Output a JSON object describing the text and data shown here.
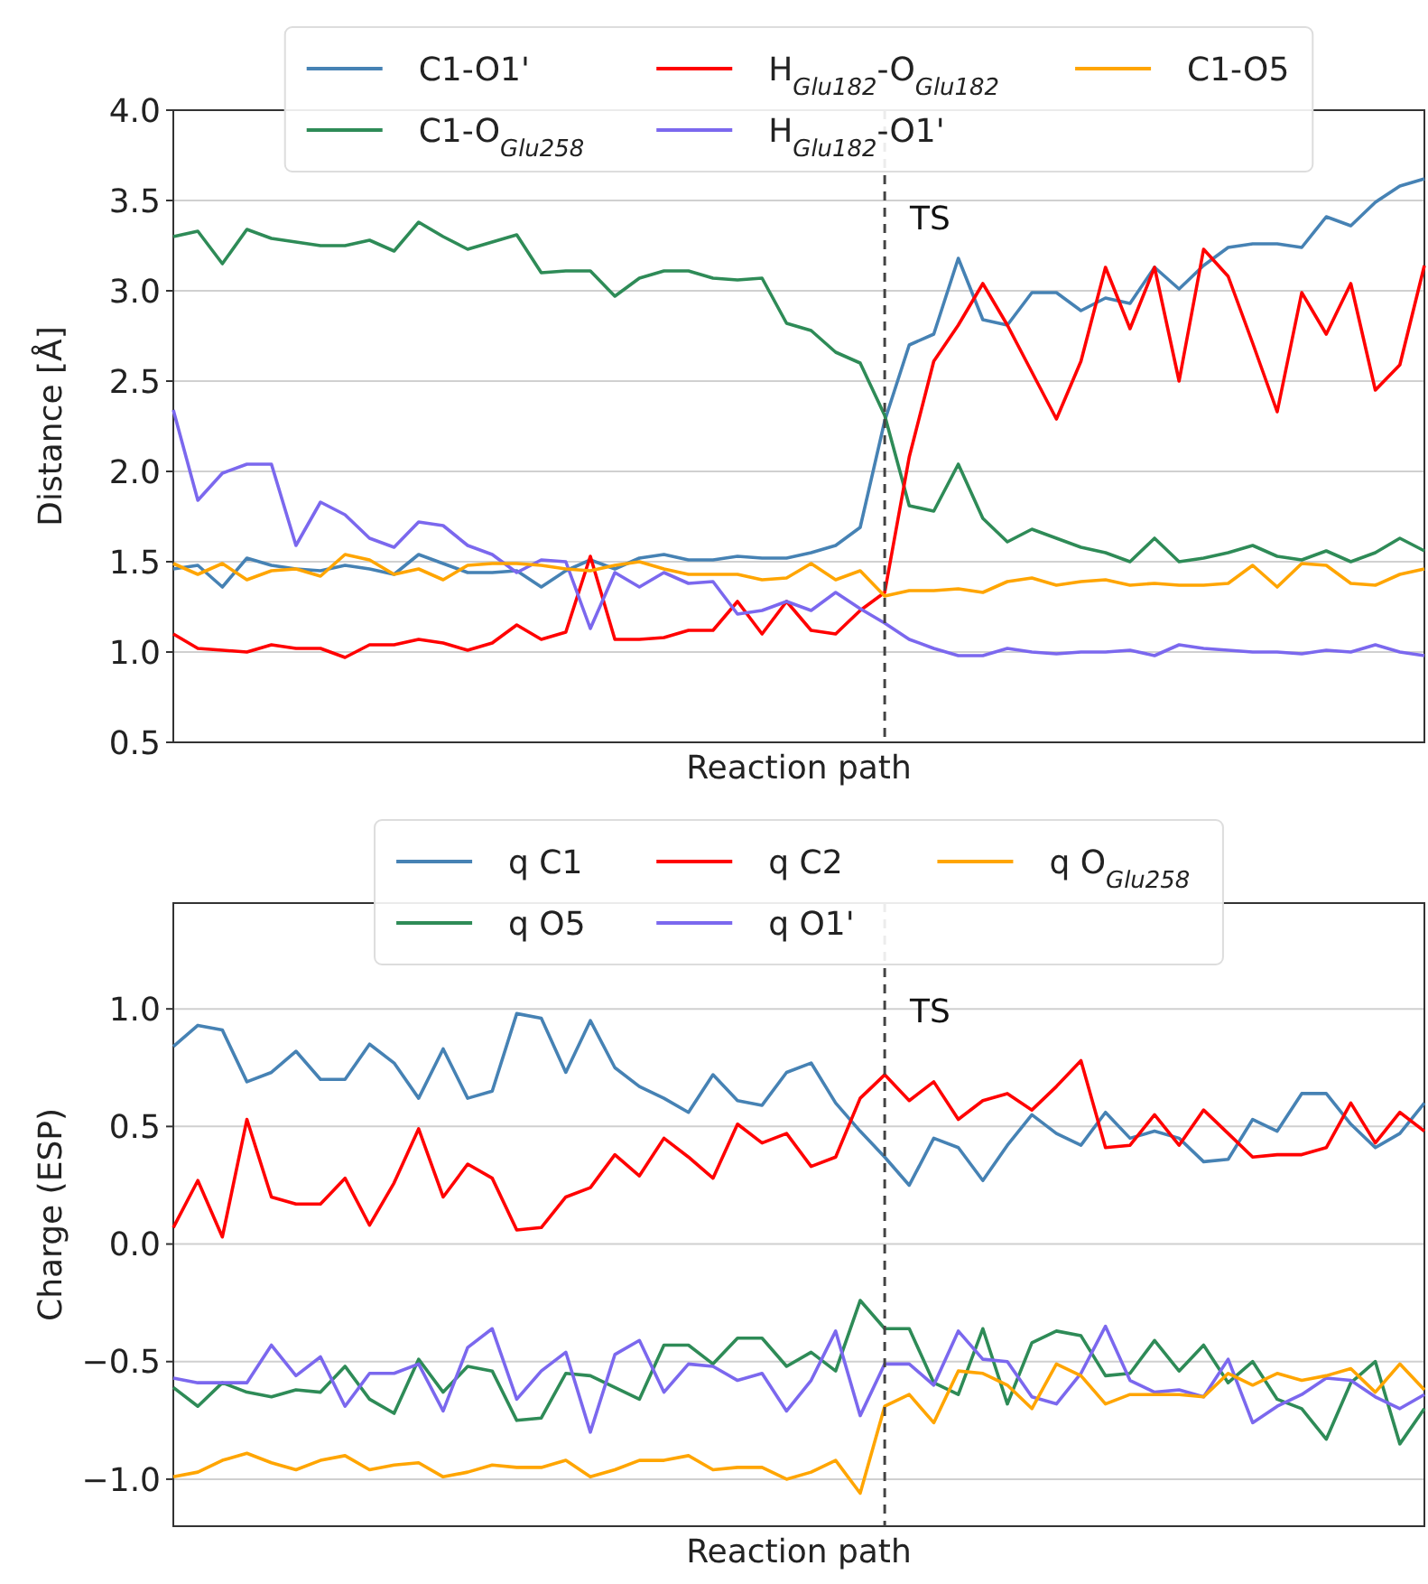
{
  "chart_data": [
    {
      "type": "line",
      "xlabel": "Reaction path",
      "ylabel": "Distance [Å]",
      "categories": [
        null,
        null,
        null,
        null,
        null,
        null,
        null,
        null,
        null,
        null,
        null,
        null,
        null,
        null,
        null,
        null,
        null,
        null,
        null,
        null,
        null,
        null,
        null,
        null,
        null,
        null,
        null,
        null,
        null,
        null,
        null,
        null,
        null,
        null,
        null,
        null,
        null,
        null,
        null,
        null,
        null,
        null,
        null,
        null,
        null,
        null,
        null,
        null,
        null,
        null,
        null,
        null
      ],
      "ylim": [
        0.5,
        4.0
      ],
      "yticks": [
        {
          "value": 0.5,
          "label": "0.5"
        },
        {
          "value": 1,
          "label": "1.0"
        },
        {
          "value": 1.5,
          "label": "1.5"
        },
        {
          "value": 2,
          "label": "2.0"
        },
        {
          "value": 2.5,
          "label": "2.5"
        },
        {
          "value": 3,
          "label": "3.0"
        },
        {
          "value": 3.5,
          "label": "3.5"
        },
        {
          "value": 4,
          "label": "4.0"
        }
      ],
      "tick_labels": "y",
      "grid": "y",
      "legend": "top",
      "marker": "none",
      "line_style": "solid",
      "annotations": [
        "TS"
      ],
      "series": [
        {
          "name": "C1-O1'",
          "color": "#4682b4",
          "values": [
            1.46,
            1.48,
            1.36,
            1.52,
            1.48,
            1.46,
            1.45,
            1.48,
            1.46,
            1.43,
            1.54,
            1.49,
            1.44,
            1.44,
            1.45,
            1.36,
            1.45,
            1.51,
            1.46,
            1.52,
            1.54,
            1.51,
            1.51,
            1.53,
            1.52,
            1.52,
            1.55,
            1.59,
            1.69,
            2.28,
            2.7,
            2.76,
            3.18,
            2.84,
            2.81,
            2.99,
            2.99,
            2.89,
            2.96,
            2.93,
            3.13,
            3.01,
            3.14,
            3.24,
            3.26,
            3.26,
            3.24,
            3.41,
            3.36,
            3.49,
            3.58,
            3.62
          ]
        },
        {
          "name": "C1-O$_{Glu258}$",
          "color": "#2e8b57",
          "values": [
            3.3,
            3.33,
            3.15,
            3.34,
            3.29,
            3.27,
            3.25,
            3.25,
            3.28,
            3.22,
            3.38,
            3.3,
            3.23,
            3.27,
            3.31,
            3.1,
            3.11,
            3.11,
            2.97,
            3.07,
            3.11,
            3.11,
            3.07,
            3.06,
            3.07,
            2.82,
            2.78,
            2.66,
            2.6,
            2.31,
            1.81,
            1.78,
            2.04,
            1.74,
            1.61,
            1.68,
            1.63,
            1.58,
            1.55,
            1.5,
            1.63,
            1.5,
            1.52,
            1.55,
            1.59,
            1.53,
            1.51,
            1.56,
            1.5,
            1.55,
            1.63,
            1.56
          ]
        },
        {
          "name": "H$_{Glu182}$-O$_{Glu182}$",
          "color": "#ff0000",
          "values": [
            1.1,
            1.02,
            1.01,
            1.0,
            1.04,
            1.02,
            1.02,
            0.97,
            1.04,
            1.04,
            1.07,
            1.05,
            1.01,
            1.05,
            1.15,
            1.07,
            1.11,
            1.53,
            1.07,
            1.07,
            1.08,
            1.12,
            1.12,
            1.28,
            1.1,
            1.28,
            1.12,
            1.1,
            1.23,
            1.33,
            2.08,
            2.61,
            2.81,
            3.04,
            2.81,
            2.55,
            2.29,
            2.61,
            3.13,
            2.79,
            3.13,
            2.5,
            3.23,
            3.08,
            2.71,
            2.33,
            2.99,
            2.76,
            3.04,
            2.45,
            2.59,
            3.14
          ]
        },
        {
          "name": "H$_{Glu182}$-O1'",
          "color": "#7b68ee",
          "values": [
            2.34,
            1.84,
            1.99,
            2.04,
            2.04,
            1.59,
            1.83,
            1.76,
            1.63,
            1.58,
            1.72,
            1.7,
            1.59,
            1.54,
            1.44,
            1.51,
            1.5,
            1.13,
            1.44,
            1.36,
            1.44,
            1.38,
            1.39,
            1.21,
            1.23,
            1.28,
            1.23,
            1.33,
            1.24,
            1.16,
            1.07,
            1.02,
            0.98,
            0.98,
            1.02,
            1.0,
            0.99,
            1.0,
            1.0,
            1.01,
            0.98,
            1.04,
            1.02,
            1.01,
            1.0,
            1.0,
            0.99,
            1.01,
            1.0,
            1.04,
            1.0,
            0.98
          ]
        },
        {
          "name": "C1-O5",
          "color": "#ffa500",
          "values": [
            1.49,
            1.43,
            1.49,
            1.4,
            1.45,
            1.46,
            1.42,
            1.54,
            1.51,
            1.43,
            1.46,
            1.4,
            1.48,
            1.49,
            1.49,
            1.48,
            1.46,
            1.45,
            1.48,
            1.5,
            1.46,
            1.43,
            1.43,
            1.43,
            1.4,
            1.41,
            1.49,
            1.4,
            1.45,
            1.31,
            1.34,
            1.34,
            1.35,
            1.33,
            1.39,
            1.41,
            1.37,
            1.39,
            1.4,
            1.37,
            1.38,
            1.37,
            1.37,
            1.38,
            1.48,
            1.36,
            1.49,
            1.48,
            1.38,
            1.37,
            1.43,
            1.46
          ]
        }
      ]
    },
    {
      "type": "line",
      "xlabel": "Reaction path",
      "ylabel": "Charge (ESP)",
      "categories": [
        null,
        null,
        null,
        null,
        null,
        null,
        null,
        null,
        null,
        null,
        null,
        null,
        null,
        null,
        null,
        null,
        null,
        null,
        null,
        null,
        null,
        null,
        null,
        null,
        null,
        null,
        null,
        null,
        null,
        null,
        null,
        null,
        null,
        null,
        null,
        null,
        null,
        null,
        null,
        null,
        null,
        null,
        null,
        null,
        null,
        null,
        null,
        null,
        null,
        null,
        null,
        null
      ],
      "ylim": [
        -1.2,
        1.45
      ],
      "yticks": [
        {
          "value": -1,
          "label": "−1.0"
        },
        {
          "value": -0.5,
          "label": "−0.5"
        },
        {
          "value": 0,
          "label": "0.0"
        },
        {
          "value": 0.5,
          "label": "0.5"
        },
        {
          "value": 1,
          "label": "1.0"
        }
      ],
      "tick_labels": "y",
      "grid": "y",
      "legend": "top",
      "marker": "none",
      "line_style": "solid",
      "annotations": [
        "TS"
      ],
      "series": [
        {
          "name": "q C1",
          "color": "#4682b4",
          "values": [
            0.84,
            0.93,
            0.91,
            0.69,
            0.73,
            0.82,
            0.7,
            0.7,
            0.85,
            0.77,
            0.62,
            0.83,
            0.62,
            0.65,
            0.98,
            0.96,
            0.73,
            0.95,
            0.75,
            0.67,
            0.62,
            0.56,
            0.72,
            0.61,
            0.59,
            0.73,
            0.77,
            0.6,
            0.48,
            0.37,
            0.25,
            0.45,
            0.41,
            0.27,
            0.42,
            0.55,
            0.47,
            0.42,
            0.56,
            0.45,
            0.48,
            0.45,
            0.35,
            0.36,
            0.53,
            0.48,
            0.64,
            0.64,
            0.51,
            0.41,
            0.47,
            0.6
          ]
        },
        {
          "name": "q O5",
          "color": "#2e8b57",
          "values": [
            -0.61,
            -0.69,
            -0.59,
            -0.63,
            -0.65,
            -0.62,
            -0.63,
            -0.52,
            -0.66,
            -0.72,
            -0.49,
            -0.63,
            -0.52,
            -0.54,
            -0.75,
            -0.74,
            -0.55,
            -0.56,
            -0.61,
            -0.66,
            -0.43,
            -0.43,
            -0.51,
            -0.4,
            -0.4,
            -0.52,
            -0.46,
            -0.54,
            -0.24,
            -0.36,
            -0.36,
            -0.59,
            -0.64,
            -0.36,
            -0.68,
            -0.42,
            -0.37,
            -0.39,
            -0.56,
            -0.55,
            -0.41,
            -0.54,
            -0.43,
            -0.59,
            -0.5,
            -0.66,
            -0.7,
            -0.83,
            -0.59,
            -0.5,
            -0.85,
            -0.7
          ]
        },
        {
          "name": "q C2",
          "color": "#ff0000",
          "values": [
            0.07,
            0.27,
            0.03,
            0.53,
            0.2,
            0.17,
            0.17,
            0.28,
            0.08,
            0.26,
            0.49,
            0.2,
            0.34,
            0.28,
            0.06,
            0.07,
            0.2,
            0.24,
            0.38,
            0.29,
            0.45,
            0.37,
            0.28,
            0.51,
            0.43,
            0.47,
            0.33,
            0.37,
            0.62,
            0.72,
            0.61,
            0.69,
            0.53,
            0.61,
            0.64,
            0.57,
            0.67,
            0.78,
            0.41,
            0.42,
            0.55,
            0.42,
            0.57,
            0.47,
            0.37,
            0.38,
            0.38,
            0.41,
            0.6,
            0.43,
            0.56,
            0.48
          ]
        },
        {
          "name": "q O1'",
          "color": "#7b68ee",
          "values": [
            -0.57,
            -0.59,
            -0.59,
            -0.59,
            -0.43,
            -0.56,
            -0.48,
            -0.69,
            -0.55,
            -0.55,
            -0.51,
            -0.71,
            -0.44,
            -0.36,
            -0.66,
            -0.54,
            -0.46,
            -0.8,
            -0.47,
            -0.41,
            -0.63,
            -0.51,
            -0.52,
            -0.58,
            -0.55,
            -0.71,
            -0.58,
            -0.37,
            -0.73,
            -0.51,
            -0.51,
            -0.6,
            -0.37,
            -0.49,
            -0.5,
            -0.65,
            -0.68,
            -0.55,
            -0.35,
            -0.58,
            -0.63,
            -0.62,
            -0.65,
            -0.49,
            -0.76,
            -0.69,
            -0.64,
            -0.57,
            -0.58,
            -0.65,
            -0.7,
            -0.64
          ]
        },
        {
          "name": "q O$_{Glu258}$",
          "color": "#ffa500",
          "values": [
            -0.99,
            -0.97,
            -0.92,
            -0.89,
            -0.93,
            -0.96,
            -0.92,
            -0.9,
            -0.96,
            -0.94,
            -0.93,
            -0.99,
            -0.97,
            -0.94,
            -0.95,
            -0.95,
            -0.92,
            -0.99,
            -0.96,
            -0.92,
            -0.92,
            -0.9,
            -0.96,
            -0.95,
            -0.95,
            -1.0,
            -0.97,
            -0.92,
            -1.06,
            -0.69,
            -0.64,
            -0.76,
            -0.54,
            -0.55,
            -0.6,
            -0.7,
            -0.51,
            -0.56,
            -0.68,
            -0.64,
            -0.64,
            -0.64,
            -0.65,
            -0.55,
            -0.6,
            -0.55,
            -0.58,
            -0.56,
            -0.53,
            -0.63,
            -0.51,
            -0.62
          ]
        }
      ]
    }
  ]
}
